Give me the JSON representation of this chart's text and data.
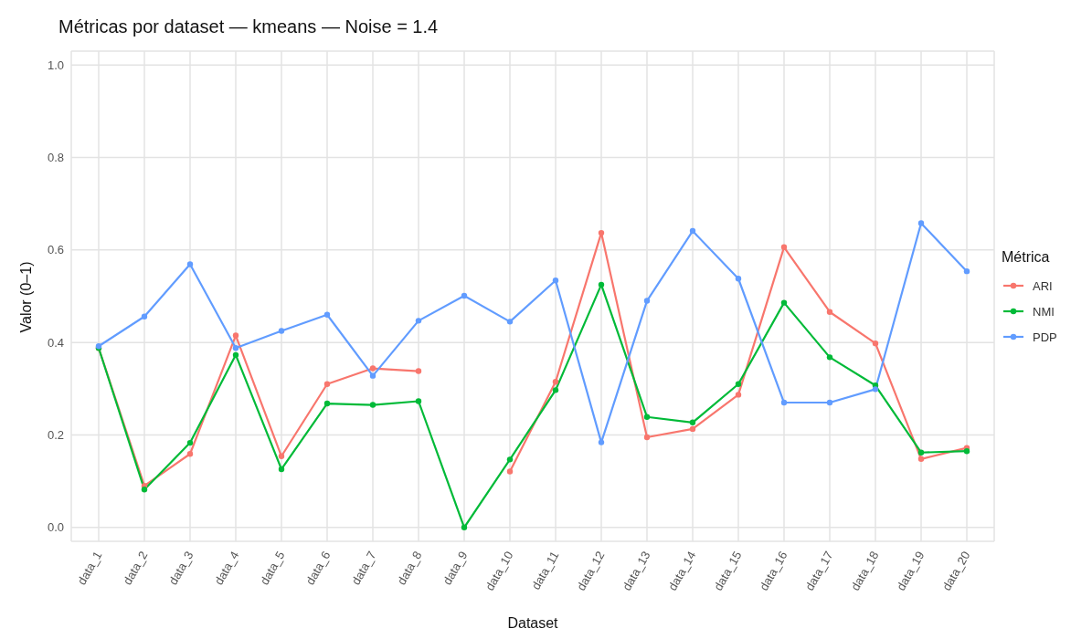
{
  "chart_data": {
    "type": "line",
    "title": "Métricas por dataset — kmeans — Noise = 1.4",
    "xlabel": "Dataset",
    "ylabel": "Valor (0–1)",
    "legend_title": "Métrica",
    "categories": [
      "data_1",
      "data_2",
      "data_3",
      "data_4",
      "data_5",
      "data_6",
      "data_7",
      "data_8",
      "data_9",
      "data_10",
      "data_11",
      "data_12",
      "data_13",
      "data_14",
      "data_15",
      "data_16",
      "data_17",
      "data_18",
      "data_19",
      "data_20"
    ],
    "series": [
      {
        "name": "ARI",
        "color": "#f8766d",
        "values": [
          0.388,
          0.09,
          0.159,
          0.415,
          0.154,
          0.31,
          0.344,
          0.338,
          null,
          0.121,
          0.315,
          0.637,
          0.195,
          0.213,
          0.287,
          0.606,
          0.466,
          0.398,
          0.148,
          0.172
        ]
      },
      {
        "name": "NMI",
        "color": "#00ba38",
        "values": [
          0.388,
          0.082,
          0.183,
          0.373,
          0.126,
          0.268,
          0.265,
          0.273,
          0.0,
          0.147,
          0.297,
          0.525,
          0.239,
          0.227,
          0.31,
          0.486,
          0.368,
          0.307,
          0.162,
          0.165
        ]
      },
      {
        "name": "PDP",
        "color": "#619cff",
        "values": [
          0.392,
          0.456,
          0.569,
          0.388,
          0.425,
          0.46,
          0.328,
          0.447,
          0.501,
          0.445,
          0.534,
          0.184,
          0.49,
          0.641,
          0.538,
          0.27,
          0.27,
          0.299,
          0.658,
          0.554
        ]
      }
    ],
    "ylim": [
      -0.03,
      1.03
    ],
    "yticks": [
      {
        "value": 0,
        "label": "0.0"
      },
      {
        "value": 0.2,
        "label": "0.2"
      },
      {
        "value": 0.4,
        "label": "0.4"
      },
      {
        "value": 0.6,
        "label": "0.6"
      },
      {
        "value": 0.8,
        "label": "0.8"
      },
      {
        "value": 1,
        "label": "1.0"
      }
    ],
    "grid": true,
    "legend": "right",
    "marker": "circle",
    "line_style": "solid"
  }
}
